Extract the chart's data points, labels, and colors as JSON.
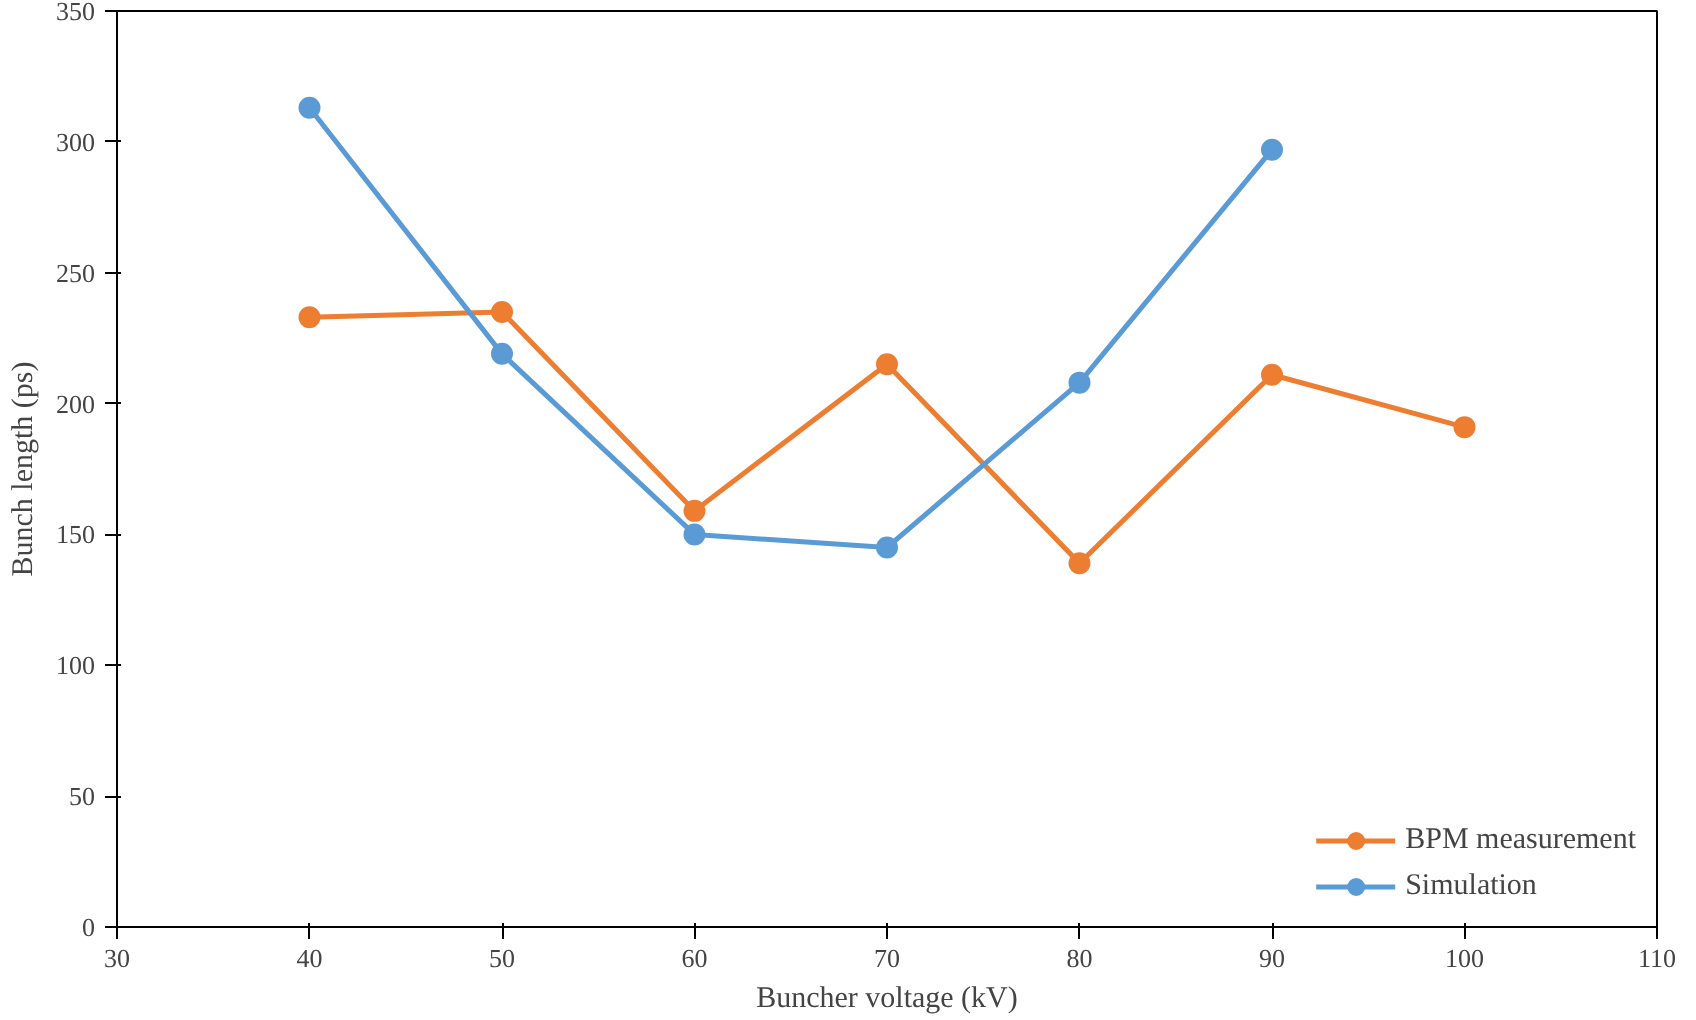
{
  "chart_data": {
    "type": "line",
    "xlabel": "Buncher voltage (kV)",
    "ylabel": "Bunch length (ps)",
    "x": [
      40,
      50,
      60,
      70,
      80,
      90,
      100
    ],
    "series": [
      {
        "name": "BPM measurement",
        "color": "#ed7d31",
        "values": [
          233,
          235,
          159,
          215,
          139,
          211,
          191
        ]
      },
      {
        "name": "Simulation",
        "color": "#5b9bd5",
        "values": [
          313,
          219,
          150,
          145,
          208,
          297,
          null
        ]
      }
    ],
    "xlim": [
      30,
      110
    ],
    "xticks": [
      30,
      40,
      50,
      60,
      70,
      80,
      90,
      100,
      110
    ],
    "ylim": [
      0,
      350
    ],
    "yticks": [
      0,
      50,
      100,
      150,
      200,
      250,
      300,
      350
    ],
    "grid": false,
    "legend": "bottom right",
    "marker": "circle",
    "line_style": "solid"
  }
}
